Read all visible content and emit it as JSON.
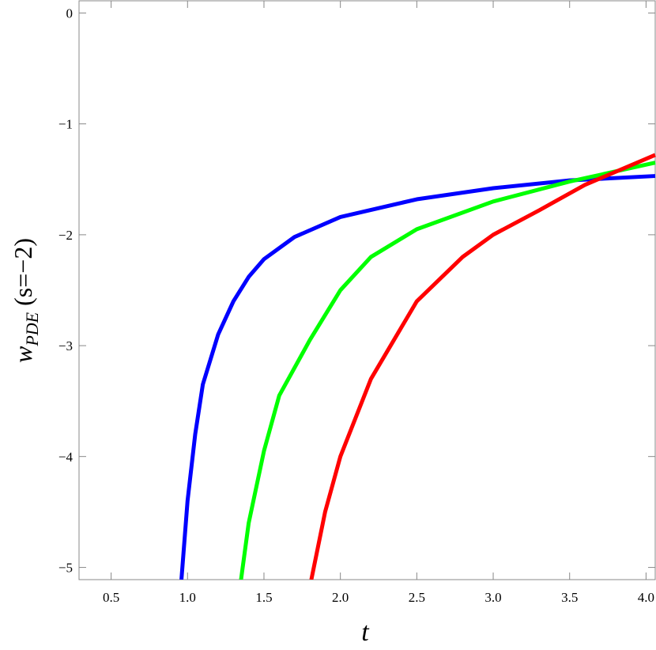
{
  "chart_data": {
    "type": "line",
    "xlabel": "t",
    "ylabel": {
      "base": "w",
      "subscript": "PDE",
      "suffix": "(s=−2)"
    },
    "xlim": [
      0.29,
      4.06
    ],
    "ylim": [
      -5.11,
      0.11
    ],
    "xticks": [
      0.5,
      {
        "value": 1,
        "label": "1.0"
      },
      1.5,
      {
        "value": 2,
        "label": "2.0"
      },
      2.5,
      {
        "value": 3,
        "label": "3.0"
      },
      3.5,
      {
        "value": 4,
        "label": "4.0"
      }
    ],
    "yticks": [
      0,
      {
        "value": -1,
        "label": "−1"
      },
      {
        "value": -2,
        "label": "−2"
      },
      {
        "value": -3,
        "label": "−3"
      },
      {
        "value": -4,
        "label": "−4"
      },
      {
        "value": -5,
        "label": "−5"
      }
    ],
    "series": [
      {
        "color": "#0000ff",
        "x": [
          0.96,
          1.0,
          1.05,
          1.1,
          1.2,
          1.3,
          1.4,
          1.5,
          1.7,
          2.0,
          2.5,
          3.0,
          3.5,
          4.06
        ],
        "values": [
          -5.11,
          -4.4,
          -3.8,
          -3.35,
          -2.9,
          -2.6,
          -2.38,
          -2.22,
          -2.02,
          -1.84,
          -1.68,
          -1.58,
          -1.51,
          -1.47
        ]
      },
      {
        "color": "#00ff00",
        "x": [
          1.35,
          1.4,
          1.5,
          1.6,
          1.8,
          2.0,
          2.2,
          2.5,
          3.0,
          3.5,
          4.06
        ],
        "values": [
          -5.11,
          -4.6,
          -3.95,
          -3.45,
          -2.95,
          -2.5,
          -2.2,
          -1.95,
          -1.7,
          -1.52,
          -1.35
        ]
      },
      {
        "color": "#ff0000",
        "x": [
          1.81,
          1.9,
          2.0,
          2.2,
          2.5,
          2.8,
          3.0,
          3.3,
          3.6,
          4.06
        ],
        "values": [
          -5.11,
          -4.5,
          -4.0,
          -3.3,
          -2.6,
          -2.2,
          -2.0,
          -1.78,
          -1.55,
          -1.28
        ]
      }
    ]
  }
}
